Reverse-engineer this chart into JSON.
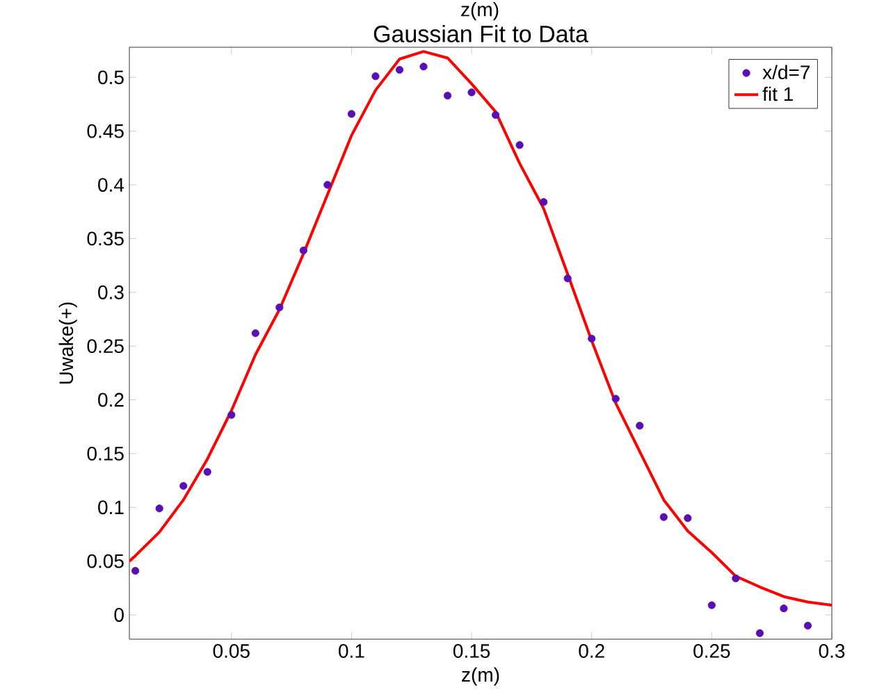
{
  "chart_data": {
    "type": "scatter",
    "title": "Gaussian Fit to Data",
    "xlabel": "z(m)",
    "ylabel": "Uwake(+)",
    "annotations": [
      "z(m)"
    ],
    "xlim": [
      0.0075,
      0.3
    ],
    "ylim": [
      -0.0226,
      0.528
    ],
    "xticks": [
      0.05,
      0.1,
      0.15,
      0.2,
      0.25,
      0.3
    ],
    "yticks": [
      0,
      0.05,
      0.1,
      0.15,
      0.2,
      0.25,
      0.3,
      0.35,
      0.4,
      0.45,
      0.5
    ],
    "legend": "top right",
    "grid": false,
    "series": [
      {
        "name": "x/d=7",
        "marker": "circle",
        "color": "#5a0fb4",
        "x": [
          0.01,
          0.02,
          0.03,
          0.04,
          0.05,
          0.06,
          0.07,
          0.08,
          0.09,
          0.1,
          0.11,
          0.12,
          0.13,
          0.14,
          0.15,
          0.16,
          0.17,
          0.18,
          0.19,
          0.2,
          0.21,
          0.22,
          0.23,
          0.24,
          0.25,
          0.26,
          0.27,
          0.28,
          0.29
        ],
        "values": [
          0.041,
          0.099,
          0.12,
          0.133,
          0.186,
          0.262,
          0.286,
          0.339,
          0.4,
          0.466,
          0.501,
          0.507,
          0.51,
          0.483,
          0.486,
          0.465,
          0.437,
          0.384,
          0.313,
          0.257,
          0.201,
          0.176,
          0.091,
          0.09,
          0.009,
          0.034,
          -0.017,
          0.006,
          -0.01
        ]
      },
      {
        "name": "fit 1",
        "type": "line",
        "marker": "none",
        "color": "#ff0000",
        "line_style": "solid",
        "x": [
          0.0075,
          0.01,
          0.02,
          0.03,
          0.04,
          0.05,
          0.06,
          0.07,
          0.08,
          0.09,
          0.1,
          0.11,
          0.12,
          0.13,
          0.14,
          0.15,
          0.16,
          0.17,
          0.18,
          0.19,
          0.2,
          0.21,
          0.22,
          0.23,
          0.24,
          0.25,
          0.26,
          0.27,
          0.28,
          0.29,
          0.3
        ],
        "values": [
          0.05,
          0.055,
          0.077,
          0.107,
          0.145,
          0.19,
          0.242,
          0.284,
          0.336,
          0.391,
          0.446,
          0.488,
          0.517,
          0.524,
          0.518,
          0.494,
          0.468,
          0.42,
          0.378,
          0.317,
          0.255,
          0.197,
          0.152,
          0.107,
          0.078,
          0.058,
          0.036,
          0.026,
          0.017,
          0.012,
          0.009
        ]
      }
    ]
  }
}
